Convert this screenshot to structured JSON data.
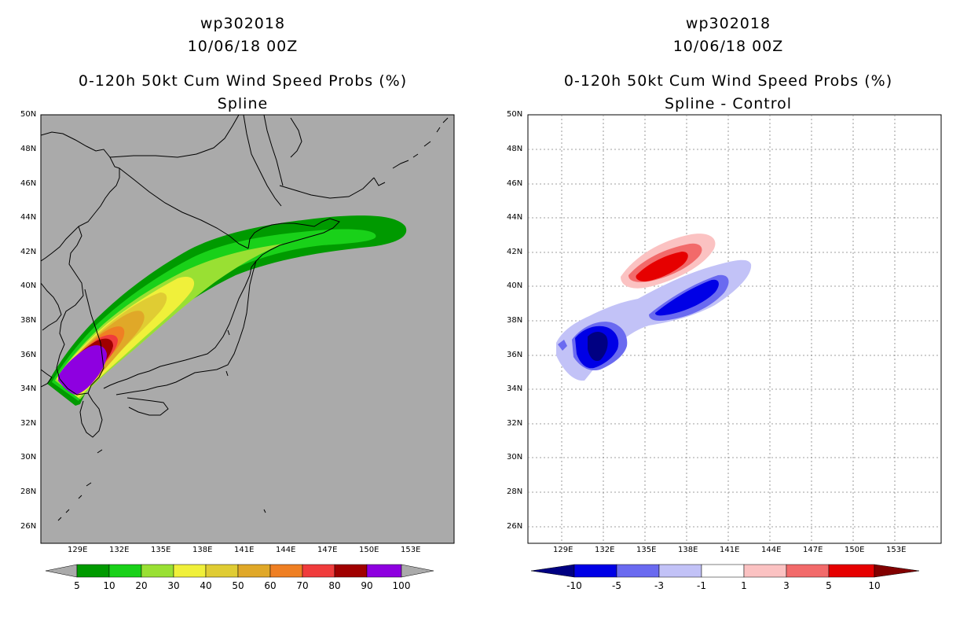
{
  "left_panel": {
    "storm_id": "wp302018",
    "datetime": "10/06/18 00Z",
    "product": "0-120h 50kt Cum Wind Speed Probs (%)",
    "subtitle": "Spline",
    "colorbar_labels": [
      "5",
      "10",
      "20",
      "30",
      "40",
      "50",
      "60",
      "70",
      "80",
      "90",
      "100"
    ],
    "colorbar_colors": [
      "#009a00",
      "#19d119",
      "#99e033",
      "#f0f03a",
      "#e0cc33",
      "#e0a828",
      "#ef7f23",
      "#f03c3c",
      "#a00000",
      "#8e00e0"
    ]
  },
  "right_panel": {
    "storm_id": "wp302018",
    "datetime": "10/06/18 00Z",
    "product": "0-120h 50kt Cum Wind Speed Probs (%)",
    "subtitle": "Spline - Control",
    "colorbar_labels": [
      "-10",
      "-5",
      "-3",
      "-1",
      "1",
      "3",
      "5",
      "10"
    ],
    "colorbar_colors": [
      "#000082",
      "#0000e6",
      "#6a6af0",
      "#c2c2f7",
      "#ffffff",
      "#fbc2c2",
      "#f26a6a",
      "#e60000",
      "#820000"
    ]
  },
  "lat_labels": [
    "50N",
    "48N",
    "46N",
    "44N",
    "42N",
    "40N",
    "38N",
    "36N",
    "34N",
    "32N",
    "30N",
    "28N",
    "26N"
  ],
  "lon_labels": [
    "129E",
    "132E",
    "135E",
    "138E",
    "141E",
    "144E",
    "147E",
    "150E",
    "153E"
  ],
  "map_colors": {
    "land_gray": "#aaaaaa",
    "coast": "#000000",
    "grid": "#808080"
  }
}
